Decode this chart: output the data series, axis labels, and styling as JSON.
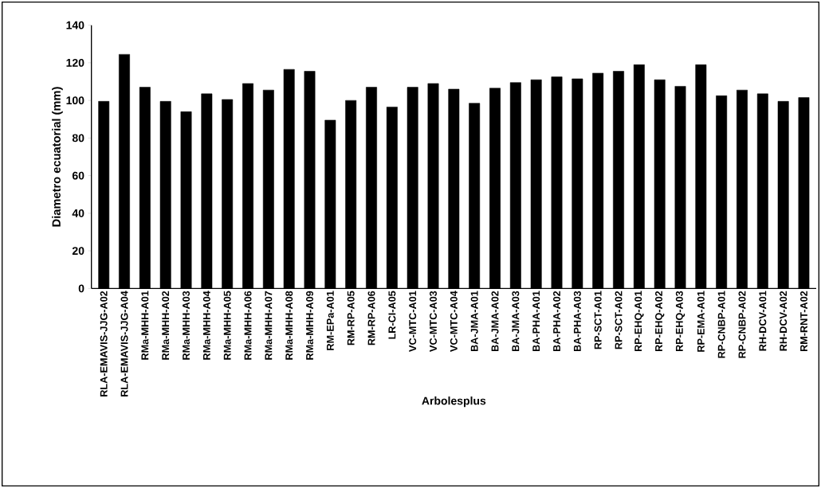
{
  "chart_data": {
    "type": "bar",
    "xlabel": "Arbolesplus",
    "ylabel": "Diametro ecuatorial (mm)",
    "categories": [
      "RLA-EMAVIS-JJG-A02",
      "RLA-EMAVIS-JJG-A04",
      "RMa-MHH-A01",
      "RMa-MHH-A02",
      "RMa-MHH-A03",
      "RMa-MHH-A04",
      "RMa-MHH-A05",
      "RMa-MHH-A06",
      "RMa-MHH-A07",
      "RMa-MHH-A08",
      "RMa-MHH-A09",
      "RM-EPa-A01",
      "RM-RP-A05",
      "RM-RP-A06",
      "LR-CI-A05",
      "VC-MTC-A01",
      "VC-MTC-A03",
      "VC-MTC-A04",
      "BA-JMA-A01",
      "BA-JMA-A02",
      "BA-JMA-A03",
      "BA-PHA-A01",
      "BA-PHA-A02",
      "BA-PHA-A03",
      "RP-SCT-A01",
      "RP-SCT-A02",
      "RP-EHQ-A01",
      "RP-EHQ-A02",
      "RP-EHQ-A03",
      "RP-EMA-A01",
      "RP-CNBP-A01",
      "RP-CNBP-A02",
      "RH-DCV-A01",
      "RH-DCV-A02",
      "RM-RNT-A02"
    ],
    "values": [
      99.5,
      124.5,
      107,
      99.5,
      94,
      103.5,
      100.5,
      109,
      105.5,
      116.5,
      115.5,
      89.5,
      100,
      107,
      96.5,
      107,
      109,
      106,
      98.5,
      106.5,
      109.5,
      111,
      112.5,
      111.5,
      114.5,
      115.5,
      119,
      111,
      107.5,
      119,
      102.5,
      105.5,
      103.5,
      99.5,
      101.5
    ],
    "color": "#000000",
    "ylim": [
      0,
      140
    ],
    "yticks": [
      0,
      20,
      40,
      60,
      80,
      100,
      120,
      140
    ],
    "grid": false
  }
}
